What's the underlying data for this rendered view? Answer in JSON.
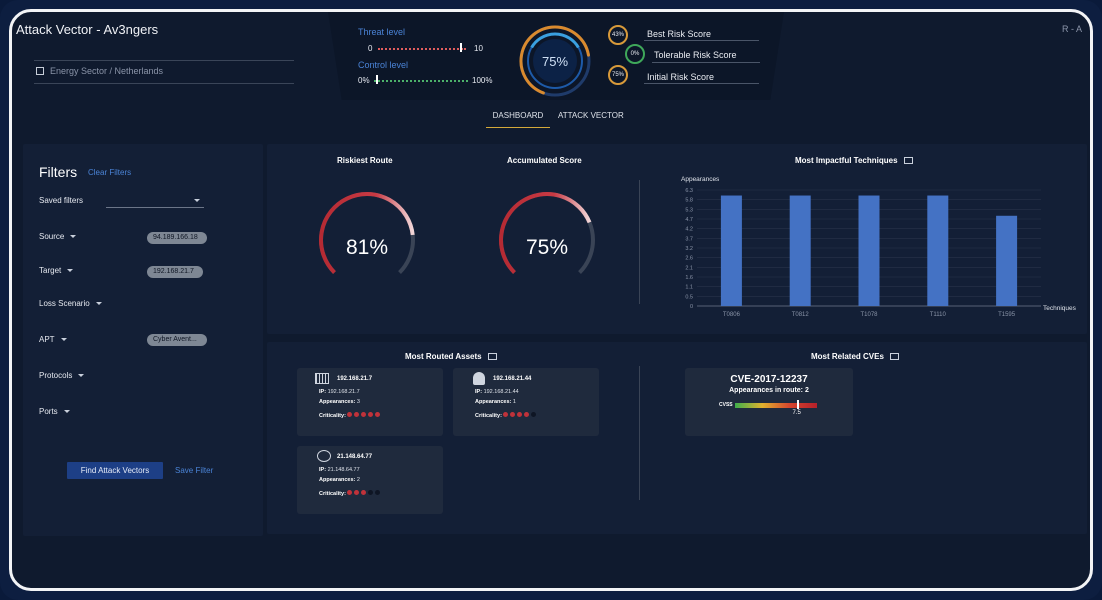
{
  "header": {
    "app_title": "Attack Vector",
    "separator": "-",
    "project_name": "Av3ngers",
    "user_initials": "R - A",
    "location": "Energy Sector / Netherlands"
  },
  "threat": {
    "label": "Threat level",
    "min": "0",
    "max": "10",
    "value_fraction": 0.93
  },
  "control": {
    "label": "Control level",
    "min": "0%",
    "max": "100%",
    "value_fraction": 0.02
  },
  "overall_score": {
    "value": "75%",
    "fraction": 0.75
  },
  "risk_scores": [
    {
      "value": "43%",
      "label": "Best Risk Score"
    },
    {
      "value": "0%",
      "label": "Tolerable Risk Score"
    },
    {
      "value": "75%",
      "label": "Initial Risk Score"
    }
  ],
  "tabs": [
    {
      "label": "DASHBOARD",
      "active": true
    },
    {
      "label": "ATTACK VECTOR",
      "active": false
    }
  ],
  "filters": {
    "title": "Filters",
    "clear_label": "Clear Filters",
    "saved_label": "Saved filters",
    "source_label": "Source",
    "source_value": "94.189.166.18",
    "target_label": "Target",
    "target_value": "192.168.21.7",
    "loss_label": "Loss Scenario",
    "apt_label": "APT",
    "apt_value": "Cyber Avent...",
    "protocols_label": "Protocols",
    "ports_label": "Ports",
    "find_button": "Find Attack Vectors",
    "save_button": "Save Filter"
  },
  "riskiest_route": {
    "title": "Riskiest Route",
    "value": "81%",
    "fraction": 0.81
  },
  "accumulated_score": {
    "title": "Accumulated Score",
    "value": "75%",
    "fraction": 0.75
  },
  "techniques": {
    "title": "Most Impactful Techniques"
  },
  "chart_data": {
    "type": "bar",
    "title": "Most Impactful Techniques",
    "ylabel": "Appearances",
    "xlabel": "Techniques",
    "categories": [
      "T0806",
      "T0812",
      "T1078",
      "T1110",
      "T1595"
    ],
    "values": [
      6,
      6,
      6,
      6,
      5
    ],
    "ylim": [
      0,
      6.5
    ],
    "yticks": [
      "0",
      "0.5",
      "1.1",
      "1.6",
      "2.1",
      "2.6",
      "3.2",
      "3.7",
      "4.2",
      "4.7",
      "5.3",
      "5.8",
      "6.3"
    ],
    "bar_color": "#4472c4",
    "grid": true
  },
  "assets": {
    "title": "Most Routed Assets",
    "ip_label": "IP:",
    "appearances_label": "Appearances:",
    "criticality_label": "Criticality:",
    "items": [
      {
        "name": "192.168.21.7",
        "ip": "192.168.21.7",
        "appearances": "3",
        "criticality": 5,
        "icon": "server-rack-icon"
      },
      {
        "name": "192.168.21.44",
        "ip": "192.168.21.44",
        "appearances": "1",
        "criticality": 4,
        "icon": "robot-arm-icon"
      },
      {
        "name": "21.148.64.77",
        "ip": "21.148.64.77",
        "appearances": "2",
        "criticality": 3,
        "icon": "network-nodes-icon"
      }
    ]
  },
  "cves": {
    "title": "Most Related CVEs",
    "items": [
      {
        "id": "CVE-2017-12237",
        "appearances_label": "Appearances in route:",
        "appearances": "2",
        "cvss_label": "CVSS",
        "cvss": "7.5",
        "cvss_fraction": 0.75
      }
    ]
  },
  "colors": {
    "accent_blue": "#4a83d6",
    "gauge_red": "#c0323a",
    "bar_blue": "#4472c4",
    "panel_bg": "#131f36",
    "gold": "#d4a93a"
  }
}
